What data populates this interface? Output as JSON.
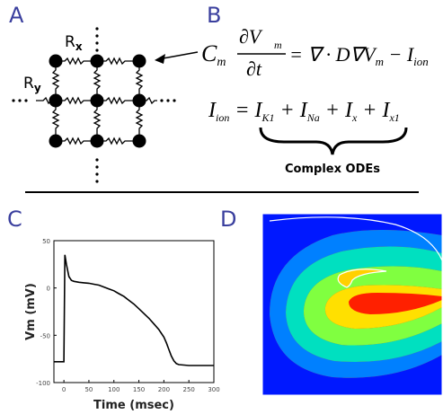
{
  "panels": {
    "a": {
      "letter": "A",
      "rx_main": "R",
      "rx_sub": "x",
      "ry_main": "R",
      "ry_sub": "y"
    },
    "b": {
      "letter": "B",
      "eq1": {
        "C": "C",
        "m": "m",
        "dV": "∂V",
        "dt": "∂t",
        "rhs": "= ∇ · D∇V",
        "Vsub": "m",
        "minus": " − I",
        "ionsub": "ion"
      },
      "eq2": {
        "I": "I",
        "ionsub": "ion",
        "eq": " = I",
        "k1": "K1",
        "plus1": " + I",
        "na": "Na",
        "plus2": " + I",
        "x": "x",
        "plus3": " + I",
        "x1": "x1"
      },
      "brace_label": "Complex ODEs"
    },
    "c": {
      "letter": "C"
    },
    "d": {
      "letter": "D",
      "colormap": [
        "#0000ff",
        "#00c8ff",
        "#00ff80",
        "#ffff00",
        "#ff8000",
        "#ff0000"
      ]
    }
  },
  "chart_data": {
    "type": "line",
    "xlabel": "Time (msec)",
    "ylabel": "Vm (mV)",
    "xlim": [
      -20,
      300
    ],
    "ylim": [
      -100,
      50
    ],
    "xticks": [
      0,
      50,
      100,
      150,
      200,
      250,
      300
    ],
    "yticks": [
      -100,
      -50,
      0,
      50
    ],
    "series": [
      {
        "x": [
          -20,
          0,
          0,
          2,
          5,
          10,
          15,
          20,
          30,
          40,
          50,
          60,
          70,
          80,
          90,
          100,
          110,
          120,
          130,
          140,
          150,
          160,
          170,
          180,
          190,
          200,
          205,
          210,
          215,
          220,
          225,
          230,
          240,
          250,
          260,
          270,
          280,
          290,
          300
        ],
        "y": [
          -78,
          -78,
          -78,
          35,
          25,
          12,
          8,
          7,
          6,
          5.5,
          5,
          4,
          3,
          1,
          -1,
          -3,
          -6,
          -9,
          -13,
          -17,
          -22,
          -27,
          -32,
          -38,
          -44,
          -52,
          -58,
          -65,
          -72,
          -77,
          -80,
          -81,
          -81.5,
          -82,
          -82,
          -82,
          -82,
          -82,
          -82
        ]
      }
    ]
  }
}
